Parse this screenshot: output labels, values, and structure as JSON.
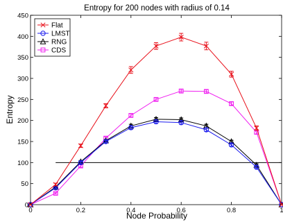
{
  "chart_data": {
    "type": "line",
    "title": "Entropy for 200 nodes with radius of 0.14",
    "xlabel": "Node Probability",
    "ylabel": "Entropy",
    "xlim": [
      0,
      1
    ],
    "ylim": [
      0,
      450
    ],
    "xticks": [
      0,
      0.2,
      0.4,
      0.6,
      0.8,
      1
    ],
    "yticks": [
      0,
      50,
      100,
      150,
      200,
      250,
      300,
      350,
      400,
      450
    ],
    "grid": false,
    "legend_position": "top-left",
    "x": [
      0,
      0.1,
      0.2,
      0.3,
      0.4,
      0.5,
      0.6,
      0.7,
      0.8,
      0.9,
      1
    ],
    "series": [
      {
        "name": "Flat",
        "color": "#e8101a",
        "marker": "x",
        "values": [
          0,
          48,
          140,
          235,
          320,
          377,
          398,
          377,
          310,
          182,
          0
        ],
        "errors": [
          0,
          3,
          4,
          5,
          8,
          8,
          9,
          9,
          7,
          5,
          0
        ]
      },
      {
        "name": "LMST",
        "color": "#1a1aee",
        "marker": "circle",
        "values": [
          0,
          40,
          100,
          150,
          183,
          197,
          195,
          178,
          142,
          89,
          0
        ],
        "errors": [
          0,
          2,
          3,
          3,
          4,
          4,
          4,
          4,
          3,
          3,
          0
        ]
      },
      {
        "name": "RNG",
        "color": "#000000",
        "marker": "triangle",
        "values": [
          0,
          42,
          102,
          152,
          187,
          203,
          202,
          187,
          150,
          94,
          0
        ],
        "errors": [
          0,
          2,
          3,
          3,
          4,
          4,
          4,
          4,
          3,
          3,
          0
        ]
      },
      {
        "name": "CDS",
        "color": "#f020f0",
        "marker": "square",
        "values": [
          0,
          27,
          92,
          158,
          212,
          250,
          270,
          269,
          240,
          172,
          0
        ],
        "errors": [
          0,
          2,
          3,
          3,
          4,
          4,
          4,
          4,
          4,
          4,
          0
        ]
      }
    ],
    "reference_line": {
      "y": 100,
      "x_range": [
        0.1,
        1.0
      ],
      "color": "#000000"
    }
  }
}
